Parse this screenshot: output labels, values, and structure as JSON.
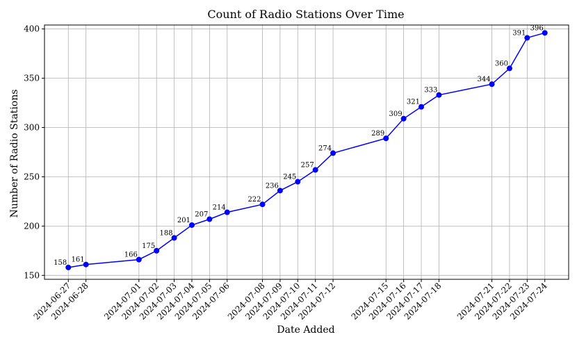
{
  "chart_data": {
    "type": "line",
    "title": "Count of Radio Stations Over Time",
    "xlabel": "Date Added",
    "ylabel": "Number of Radio Stations",
    "x": [
      "2024-06-27",
      "2024-06-28",
      "2024-07-01",
      "2024-07-02",
      "2024-07-03",
      "2024-07-04",
      "2024-07-05",
      "2024-07-06",
      "2024-07-08",
      "2024-07-09",
      "2024-07-10",
      "2024-07-11",
      "2024-07-12",
      "2024-07-15",
      "2024-07-16",
      "2024-07-17",
      "2024-07-18",
      "2024-07-21",
      "2024-07-22",
      "2024-07-23",
      "2024-07-24"
    ],
    "series": [
      {
        "values": [
          158,
          161,
          166,
          175,
          188,
          201,
          207,
          214,
          222,
          236,
          245,
          257,
          274,
          289,
          309,
          321,
          333,
          344,
          360,
          391,
          396
        ],
        "color": "#0000ff"
      }
    ],
    "ylim": [
      146,
      404
    ],
    "yticks": [
      150,
      200,
      250,
      300,
      350,
      400
    ],
    "grid": true,
    "marker": "circle"
  }
}
